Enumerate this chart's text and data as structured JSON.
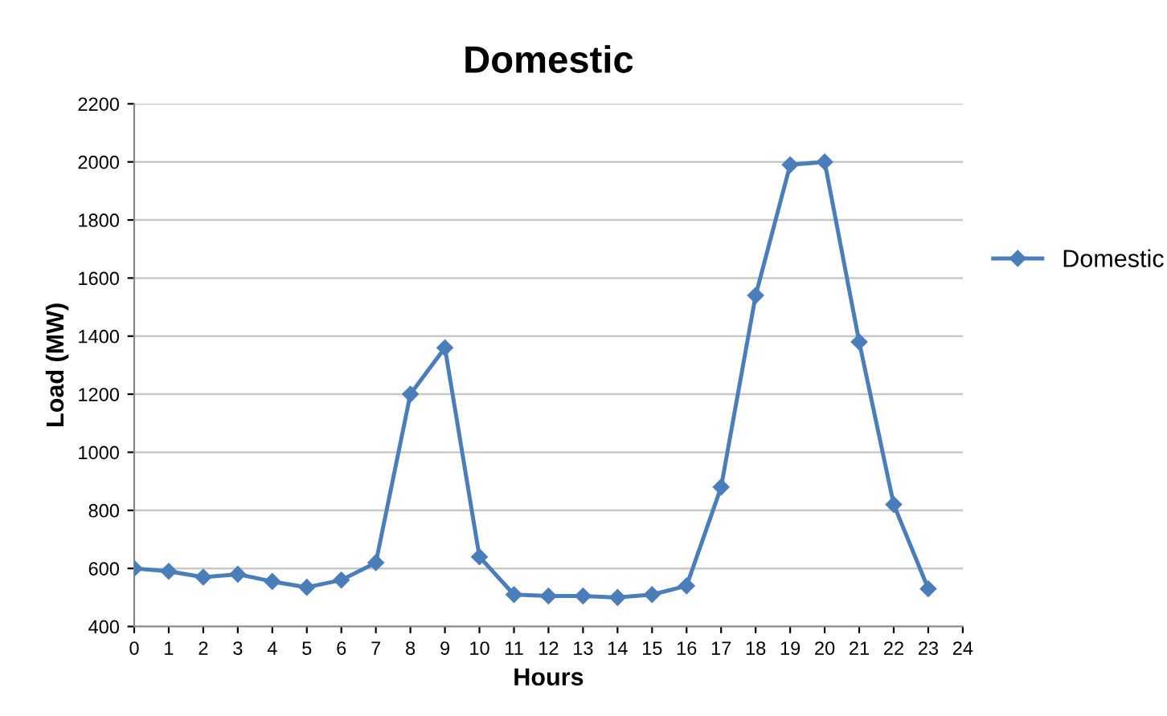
{
  "chart_data": {
    "type": "line",
    "title": "Domestic",
    "xlabel": "Hours",
    "ylabel": "Load (MW)",
    "x": [
      0,
      1,
      2,
      3,
      4,
      5,
      6,
      7,
      8,
      9,
      10,
      11,
      12,
      13,
      14,
      15,
      16,
      17,
      18,
      19,
      20,
      21,
      22,
      23
    ],
    "series": [
      {
        "name": "Domestic",
        "color": "#4a7ebb",
        "values": [
          600,
          590,
          570,
          580,
          555,
          535,
          560,
          620,
          1200,
          1360,
          640,
          510,
          505,
          505,
          500,
          510,
          540,
          880,
          1540,
          1990,
          2000,
          1380,
          820,
          530
        ]
      }
    ],
    "xlim": [
      0,
      24
    ],
    "xticks": [
      0,
      1,
      2,
      3,
      4,
      5,
      6,
      7,
      8,
      9,
      10,
      11,
      12,
      13,
      14,
      15,
      16,
      17,
      18,
      19,
      20,
      21,
      22,
      23,
      24
    ],
    "ylim": [
      400,
      2200
    ],
    "yticks": [
      400,
      600,
      800,
      1000,
      1200,
      1400,
      1600,
      1800,
      2000,
      2200
    ],
    "grid": "y",
    "legend": "right",
    "marker": "diamond",
    "line_style": "solid"
  }
}
